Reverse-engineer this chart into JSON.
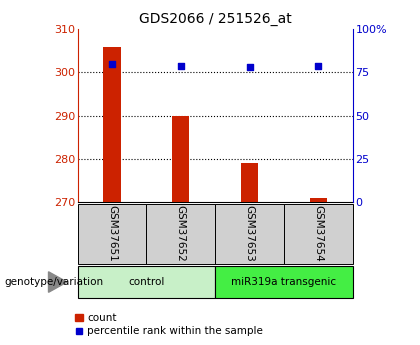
{
  "title": "GDS2066 / 251526_at",
  "samples": [
    "GSM37651",
    "GSM37652",
    "GSM37653",
    "GSM37654"
  ],
  "count_values": [
    306,
    290,
    279,
    271
  ],
  "percentile_values": [
    80,
    79,
    78,
    79
  ],
  "count_base": 270,
  "left_ylim": [
    270,
    310
  ],
  "left_yticks": [
    270,
    280,
    290,
    300,
    310
  ],
  "right_ylim": [
    0,
    100
  ],
  "right_yticks": [
    0,
    25,
    50,
    75,
    100
  ],
  "right_yticklabels": [
    "0",
    "25",
    "50",
    "75",
    "100%"
  ],
  "bar_color": "#cc2200",
  "dot_color": "#0000cc",
  "grid_values": [
    280,
    290,
    300
  ],
  "groups": [
    {
      "label": "control",
      "samples": [
        0,
        1
      ],
      "color": "#c8f0c8"
    },
    {
      "label": "miR319a transgenic",
      "samples": [
        2,
        3
      ],
      "color": "#44ee44"
    }
  ],
  "group_label": "genotype/variation",
  "legend_bar_label": "count",
  "legend_dot_label": "percentile rank within the sample",
  "left_axis_color": "#cc2200",
  "right_axis_color": "#0000cc",
  "sample_box_color": "#d0d0d0",
  "bar_width": 0.25
}
